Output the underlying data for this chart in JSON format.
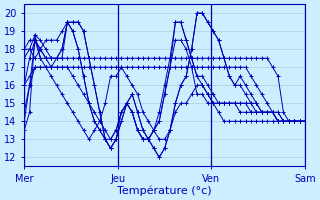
{
  "xlabel": "Température (°c)",
  "background_color": "#cceeff",
  "plot_bg_color": "#cceeff",
  "line_color": "#0000bb",
  "grid_color": "#99cccc",
  "ylim": [
    11.5,
    20.5
  ],
  "xlim": [
    0,
    312
  ],
  "day_positions": [
    0,
    104,
    208,
    312
  ],
  "day_labels": [
    "Mer",
    "Jeu",
    "Ven",
    "Sam"
  ],
  "series": [
    {
      "x": [
        0,
        6,
        12,
        18,
        24,
        30,
        36,
        42,
        48,
        54,
        60,
        66,
        72,
        78,
        84,
        90,
        96,
        102,
        108,
        114,
        120,
        126,
        132,
        138,
        144,
        150,
        156,
        162,
        168,
        174,
        180,
        186,
        192,
        198,
        204,
        210,
        216,
        222,
        228,
        234,
        240,
        246,
        252,
        258,
        264,
        270,
        276,
        282,
        288,
        294,
        300,
        306,
        312
      ],
      "y": [
        13.5,
        14.5,
        18.8,
        17.5,
        17.5,
        17.5,
        17.5,
        17.5,
        17.5,
        17.5,
        17.5,
        17.5,
        17.5,
        17.5,
        17.5,
        17.5,
        17.5,
        17.5,
        17.5,
        17.5,
        17.5,
        17.5,
        17.5,
        17.5,
        17.5,
        17.5,
        17.5,
        17.5,
        17.5,
        17.5,
        17.5,
        17.5,
        17.5,
        17.5,
        17.5,
        17.5,
        17.5,
        17.5,
        17.5,
        17.5,
        17.5,
        17.5,
        17.5,
        17.5,
        17.5,
        17.5,
        17.0,
        16.5,
        14.5,
        14.0,
        14.0,
        14.0,
        14.0
      ]
    },
    {
      "x": [
        0,
        6,
        12,
        18,
        24,
        30,
        36,
        42,
        48,
        54,
        60,
        66,
        72,
        78,
        84,
        90,
        96,
        102,
        108,
        114,
        120,
        126,
        132,
        138,
        144,
        150,
        156,
        162,
        168,
        174,
        180,
        186,
        192,
        198,
        204,
        210,
        216,
        222,
        228,
        234,
        240,
        246,
        252,
        258,
        264,
        270,
        276,
        282,
        288,
        294,
        300,
        306,
        312
      ],
      "y": [
        16.0,
        16.5,
        17.0,
        17.0,
        17.0,
        17.0,
        17.0,
        17.0,
        17.0,
        17.0,
        17.0,
        17.0,
        17.0,
        17.0,
        17.0,
        17.0,
        17.0,
        17.0,
        17.0,
        17.0,
        17.0,
        17.0,
        17.0,
        17.0,
        17.0,
        17.0,
        17.0,
        17.0,
        17.0,
        17.0,
        17.0,
        17.0,
        17.0,
        17.0,
        17.0,
        17.0,
        17.0,
        17.0,
        17.0,
        17.0,
        17.0,
        17.0,
        16.5,
        16.0,
        15.5,
        15.0,
        14.5,
        14.0,
        14.0,
        14.0,
        14.0,
        14.0,
        14.0
      ]
    },
    {
      "x": [
        0,
        6,
        12,
        18,
        24,
        30,
        36,
        42,
        48,
        54,
        60,
        66,
        72,
        78,
        84,
        90,
        96,
        102,
        108,
        114,
        120,
        126,
        132,
        138,
        144,
        150,
        156,
        162,
        168,
        174,
        180,
        186,
        192,
        198,
        204,
        210,
        216,
        222,
        228,
        234,
        240,
        246,
        252,
        258,
        264,
        270,
        276,
        282,
        288,
        294,
        300,
        306,
        312
      ],
      "y": [
        14.5,
        16.0,
        18.5,
        17.5,
        17.0,
        16.5,
        16.0,
        15.5,
        15.0,
        14.5,
        14.0,
        13.5,
        13.0,
        13.5,
        14.0,
        15.0,
        16.5,
        16.5,
        17.0,
        16.5,
        16.0,
        15.5,
        14.5,
        14.0,
        13.5,
        13.0,
        13.0,
        13.5,
        14.5,
        15.0,
        15.0,
        15.5,
        16.0,
        16.0,
        15.5,
        15.0,
        14.5,
        14.0,
        14.0,
        14.0,
        14.0,
        14.0,
        14.0,
        14.0,
        14.0,
        14.0,
        14.0,
        14.0,
        14.0,
        14.0,
        14.0,
        14.0,
        14.0
      ]
    },
    {
      "x": [
        0,
        6,
        12,
        18,
        24,
        30,
        36,
        42,
        48,
        54,
        60,
        66,
        72,
        78,
        84,
        90,
        96,
        102,
        108,
        114,
        120,
        126,
        132,
        138,
        144,
        150,
        156,
        162,
        168,
        174,
        180,
        186,
        192,
        198,
        204,
        210,
        216,
        222,
        228,
        234,
        240,
        246,
        252,
        258,
        264,
        270,
        276,
        282,
        288,
        294,
        300,
        306,
        312
      ],
      "y": [
        16.0,
        17.5,
        18.5,
        18.0,
        17.5,
        17.0,
        17.5,
        18.0,
        19.5,
        19.5,
        19.5,
        19.0,
        17.5,
        16.0,
        14.5,
        13.0,
        12.5,
        13.0,
        14.0,
        15.0,
        15.5,
        14.5,
        13.5,
        13.0,
        12.5,
        12.0,
        12.5,
        13.5,
        15.0,
        16.0,
        16.5,
        18.0,
        20.0,
        20.0,
        19.5,
        19.0,
        18.5,
        17.5,
        16.5,
        16.0,
        16.5,
        16.0,
        15.5,
        15.0,
        14.5,
        14.5,
        14.5,
        14.5,
        14.0,
        14.0,
        14.0,
        14.0,
        14.0
      ]
    },
    {
      "x": [
        0,
        6,
        12,
        18,
        24,
        30,
        36,
        42,
        48,
        54,
        60,
        66,
        72,
        78,
        84,
        90,
        96,
        102,
        108,
        114,
        120,
        126,
        132,
        138,
        144,
        150,
        156,
        162,
        168,
        174,
        180,
        186,
        192,
        198,
        204,
        210,
        216,
        222,
        228,
        234,
        240,
        246,
        252,
        258,
        264,
        270,
        276,
        282,
        288,
        294,
        300,
        306,
        312
      ],
      "y": [
        17.5,
        18.0,
        18.8,
        18.5,
        18.0,
        17.5,
        17.5,
        18.0,
        19.5,
        19.5,
        19.5,
        19.0,
        17.5,
        16.0,
        14.5,
        13.0,
        12.5,
        13.0,
        14.0,
        15.0,
        15.5,
        14.5,
        13.5,
        13.0,
        12.5,
        12.0,
        12.5,
        13.5,
        15.0,
        16.0,
        16.5,
        18.0,
        20.0,
        20.0,
        19.5,
        19.0,
        18.5,
        17.5,
        16.5,
        16.0,
        16.0,
        15.5,
        15.0,
        14.5,
        14.5,
        14.5,
        14.5,
        14.5,
        14.0,
        14.0,
        14.0,
        14.0,
        14.0
      ]
    },
    {
      "x": [
        0,
        6,
        12,
        18,
        24,
        30,
        36,
        42,
        48,
        54,
        60,
        66,
        72,
        78,
        84,
        90,
        96,
        102,
        108,
        114,
        120,
        126,
        132,
        138,
        144,
        150,
        156,
        162,
        168,
        174,
        180,
        186,
        192,
        198,
        204,
        210,
        216,
        222,
        228,
        234,
        240,
        246,
        252,
        258,
        264,
        270,
        276,
        282,
        288,
        294,
        300,
        306,
        312
      ],
      "y": [
        18.0,
        18.5,
        18.5,
        18.0,
        17.5,
        17.5,
        17.5,
        17.5,
        19.5,
        19.0,
        18.0,
        16.5,
        15.0,
        14.0,
        13.5,
        13.0,
        13.0,
        13.5,
        14.5,
        15.0,
        14.5,
        13.5,
        13.0,
        13.0,
        13.5,
        14.0,
        15.5,
        17.0,
        19.5,
        19.5,
        18.5,
        17.5,
        16.5,
        16.5,
        16.0,
        15.5,
        15.0,
        15.0,
        15.0,
        15.0,
        15.0,
        15.0,
        15.0,
        15.0,
        14.5,
        14.5,
        14.5,
        14.0,
        14.0,
        14.0,
        14.0,
        14.0,
        14.0
      ]
    },
    {
      "x": [
        0,
        6,
        12,
        18,
        24,
        30,
        36,
        42,
        48,
        54,
        60,
        66,
        72,
        78,
        84,
        90,
        96,
        102,
        108,
        114,
        120,
        126,
        132,
        138,
        144,
        150,
        156,
        162,
        168,
        174,
        180,
        186,
        192,
        198,
        204,
        210,
        216,
        222,
        228,
        234,
        240,
        246,
        252,
        258,
        264,
        270,
        276,
        282,
        288,
        294,
        300,
        306,
        312
      ],
      "y": [
        18.0,
        18.0,
        17.5,
        18.0,
        18.5,
        18.5,
        18.5,
        19.0,
        19.5,
        19.0,
        18.0,
        16.5,
        15.0,
        14.0,
        13.5,
        13.0,
        12.5,
        13.0,
        14.5,
        15.0,
        14.5,
        13.5,
        13.0,
        13.0,
        13.5,
        14.5,
        16.0,
        17.5,
        19.5,
        19.5,
        18.5,
        17.5,
        16.5,
        16.0,
        15.5,
        15.0,
        15.0,
        15.0,
        15.0,
        15.0,
        15.0,
        15.0,
        14.5,
        14.5,
        14.5,
        14.5,
        14.5,
        14.0,
        14.0,
        14.0,
        14.0,
        14.0,
        14.0
      ]
    },
    {
      "x": [
        0,
        6,
        12,
        18,
        24,
        30,
        36,
        42,
        48,
        54,
        60,
        66,
        72,
        78,
        84,
        90,
        96,
        102,
        108,
        114,
        120,
        126,
        132,
        138,
        144,
        150,
        156,
        162,
        168,
        174,
        180,
        186,
        192,
        198,
        204,
        210,
        216,
        222,
        228,
        234,
        240,
        246,
        252,
        258,
        264,
        270,
        276,
        282,
        288,
        294,
        300,
        306,
        312
      ],
      "y": [
        14.0,
        16.0,
        17.0,
        17.0,
        17.0,
        17.0,
        17.0,
        17.0,
        17.0,
        16.5,
        16.0,
        15.5,
        15.0,
        14.5,
        14.0,
        13.5,
        13.0,
        13.5,
        14.5,
        15.0,
        14.5,
        13.5,
        13.0,
        13.0,
        13.5,
        14.0,
        15.5,
        17.0,
        18.5,
        18.5,
        18.0,
        17.0,
        15.5,
        15.5,
        15.0,
        15.0,
        15.0,
        15.0,
        15.0,
        15.0,
        14.5,
        14.5,
        14.5,
        14.5,
        14.5,
        14.5,
        14.5,
        14.0,
        14.0,
        14.0,
        14.0,
        14.0,
        14.0
      ]
    }
  ]
}
